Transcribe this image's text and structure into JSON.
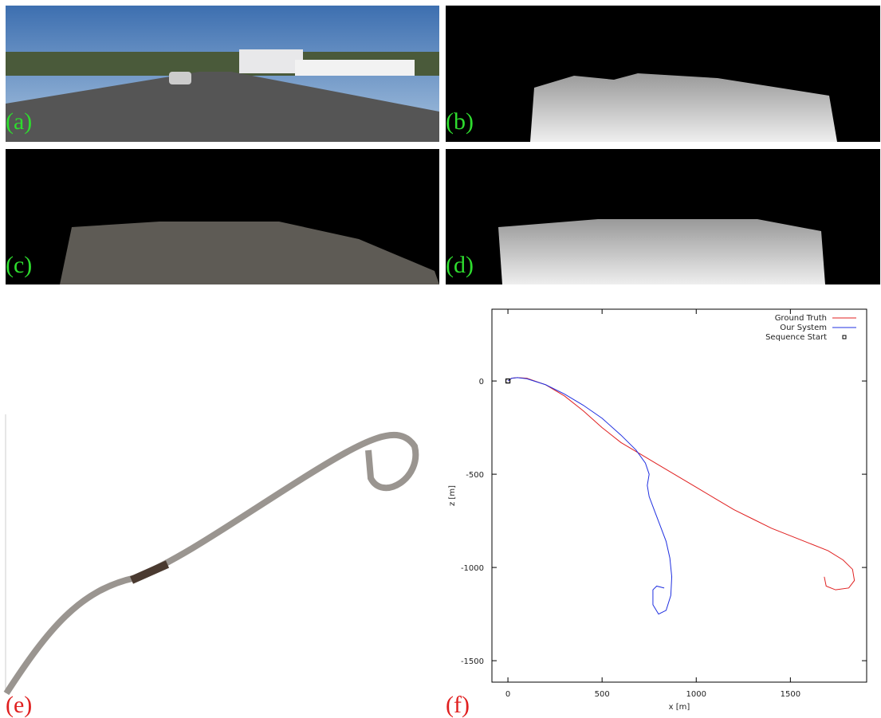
{
  "panels": {
    "a": "(a)",
    "b": "(b)",
    "c": "(c)",
    "d": "(d)",
    "e": "(e)",
    "f": "(f)"
  },
  "chart_data": {
    "type": "line",
    "xlabel": "x [m]",
    "ylabel": "z [m]",
    "xlim": [
      -85,
      1905
    ],
    "ylim": [
      -1615,
      385
    ],
    "xticks": [
      0,
      500,
      1000,
      1500
    ],
    "yticks": [
      0,
      -500,
      -1000,
      -1500
    ],
    "legend": "top-right",
    "series": [
      {
        "name": "Ground Truth",
        "color": "#e02020",
        "x": [
          0,
          20,
          50,
          100,
          200,
          300,
          400,
          500,
          600,
          700,
          800,
          900,
          1000,
          1100,
          1200,
          1300,
          1400,
          1500,
          1600,
          1700,
          1780,
          1830,
          1840,
          1810,
          1740,
          1690,
          1680
        ],
        "values": [
          0,
          15,
          18,
          15,
          -20,
          -80,
          -160,
          -250,
          -330,
          -390,
          -450,
          -510,
          -570,
          -630,
          -690,
          -740,
          -790,
          -830,
          -870,
          -910,
          -960,
          -1010,
          -1070,
          -1110,
          -1120,
          -1100,
          -1050
        ]
      },
      {
        "name": "Our System",
        "color": "#2030e0",
        "x": [
          0,
          20,
          50,
          100,
          200,
          300,
          400,
          500,
          600,
          680,
          730,
          750,
          740,
          750,
          780,
          810,
          840,
          860,
          870,
          865,
          840,
          800,
          770,
          770,
          790,
          830
        ],
        "values": [
          0,
          15,
          18,
          12,
          -20,
          -70,
          -130,
          -200,
          -290,
          -370,
          -440,
          -500,
          -560,
          -620,
          -700,
          -780,
          -860,
          -950,
          -1050,
          -1150,
          -1230,
          -1250,
          -1200,
          -1120,
          -1100,
          -1110
        ]
      },
      {
        "name": "Sequence Start",
        "color": "#000000",
        "marker": "square",
        "x": [
          0
        ],
        "values": [
          0
        ]
      }
    ]
  }
}
